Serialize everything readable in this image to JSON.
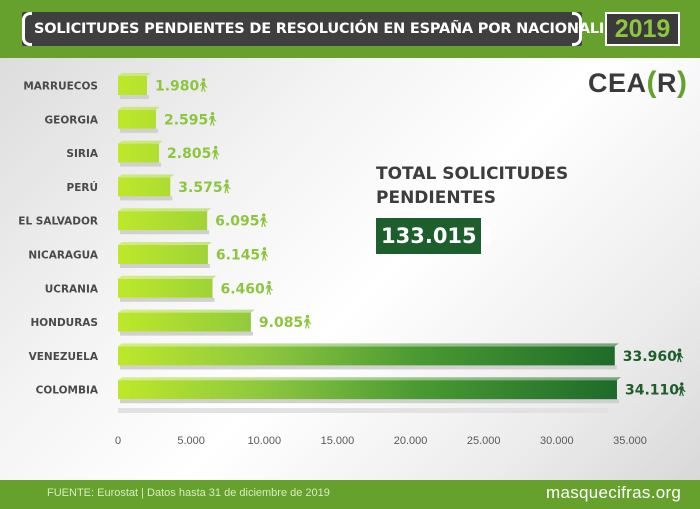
{
  "header": {
    "title": "SOLICITUDES PENDIENTES DE RESOLUCIÓN EN ESPAÑA POR NACIONALIDAD",
    "year": "2019"
  },
  "brand": {
    "prefix": "CEA",
    "open": "(",
    "letter": "R",
    "close": ")"
  },
  "summary": {
    "label": "TOTAL SOLICITUDES PENDIENTES",
    "value": "133.015"
  },
  "footer": {
    "source": "FUENTE: Eurostat | Datos hasta 31 de diciembre de 2019",
    "website": "masquecifras.org"
  },
  "chart_data": {
    "type": "bar",
    "orientation": "horizontal",
    "categories": [
      "MARRUECOS",
      "GEORGIA",
      "SIRIA",
      "PERÚ",
      "EL SALVADOR",
      "NICARAGUA",
      "UCRANIA",
      "HONDURAS",
      "VENEZUELA",
      "COLOMBIA"
    ],
    "values": [
      1980,
      2595,
      2805,
      3575,
      6095,
      6145,
      6460,
      9085,
      33960,
      34110
    ],
    "value_labels": [
      "1.980",
      "2.595",
      "2.805",
      "3.575",
      "6.095",
      "6.145",
      "6.460",
      "9.085",
      "33.960",
      "34.110"
    ],
    "x_ticks": [
      0,
      5000,
      10000,
      15000,
      20000,
      25000,
      30000,
      35000
    ],
    "x_tick_labels": [
      "0",
      "5.000",
      "10.000",
      "15.000",
      "20.000",
      "25.000",
      "30.000",
      "35.000"
    ],
    "xlim": [
      0,
      35000
    ],
    "grid": false,
    "colors": {
      "bar_light": "#bde82a",
      "bar_dark": "#1e6b2a",
      "label_green": "#8cc63f",
      "label_dark": "#1e5e2a"
    },
    "icon": "walking-person-icon"
  }
}
